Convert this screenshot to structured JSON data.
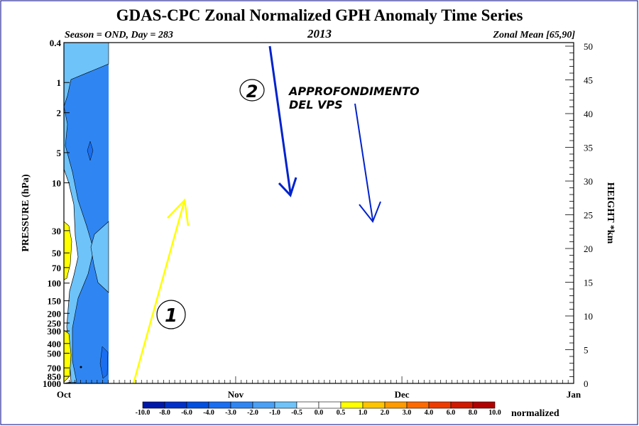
{
  "chart_data": {
    "type": "heatmap",
    "title": "GDAS-CPC Zonal Normalized GPH Anomaly Time Series",
    "subtitle_left": "Season = OND, Day = 283",
    "subtitle_center": "2013",
    "subtitle_right": "Zonal Mean [65,90]",
    "ylabel": "PRESSURE (hPa)",
    "y2label": "HEIGHT *km",
    "x_ticks": [
      "Oct",
      "Nov",
      "Dec",
      "Jan"
    ],
    "pressure_ticks": [
      "0.4",
      "1",
      "2",
      "5",
      "10",
      "30",
      "50",
      "70",
      "100",
      "150",
      "200",
      "250",
      "300",
      "400",
      "500",
      "700",
      "850",
      "1000"
    ],
    "height_ticks": [
      "0",
      "5",
      "10",
      "15",
      "20",
      "25",
      "30",
      "35",
      "40",
      "45",
      "50"
    ],
    "colorbar": {
      "labels": [
        "-10.0",
        "-8.0",
        "-6.0",
        "-4.0",
        "-3.0",
        "-2.0",
        "-1.0",
        "-0.5",
        "0.0",
        "0.5",
        "1.0",
        "2.0",
        "3.0",
        "4.0",
        "6.0",
        "8.0",
        "10.0"
      ],
      "colors": [
        "#0018a8",
        "#0030c8",
        "#0050e0",
        "#1a6ef0",
        "#2f86f2",
        "#4aa0f5",
        "#6ec3f9",
        "#ffffff",
        "#ffffff",
        "#ffff00",
        "#ffc400",
        "#ff9a00",
        "#ff6a00",
        "#ee3c00",
        "#d01a00",
        "#b00000"
      ],
      "unit": "normalized"
    },
    "data_days_shown": 8,
    "anomaly_field": {
      "dominant_value_range": [
        -2.0,
        -1.0
      ],
      "positive_pockets_pressure_hPa": [
        [
          30,
          70
        ],
        [
          300,
          1000
        ]
      ],
      "positive_pocket_value_range": [
        0.5,
        1.0
      ]
    }
  },
  "annotations": {
    "label_1": "1",
    "label_2": "2",
    "text_line1": "APPROFONDIMENTO",
    "text_line2": "DEL VPS",
    "color_yellow": "#ffff00",
    "color_blue": "#0022cc"
  }
}
